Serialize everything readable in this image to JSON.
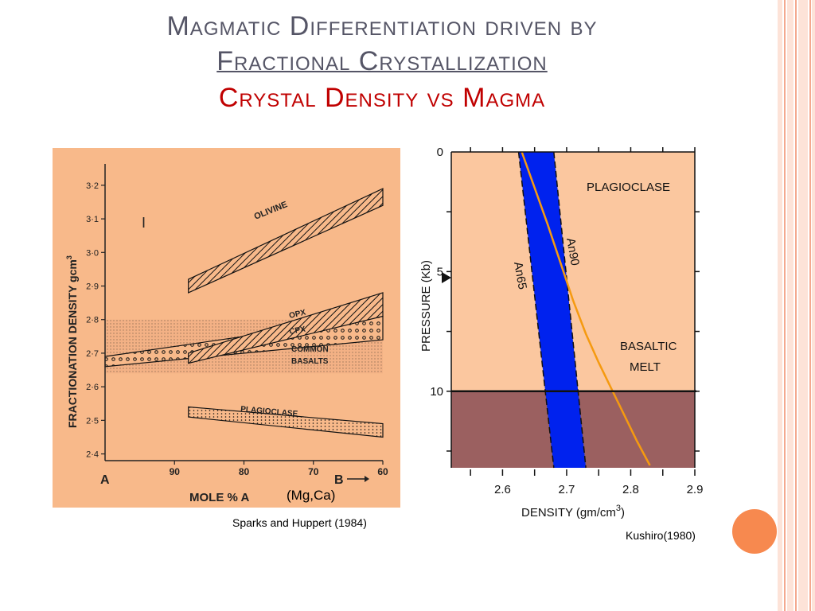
{
  "slide": {
    "title_line1": "Magmatic Differentiation driven by",
    "title_line2": "Fractional Crystallization",
    "title_line3": "Crystal Density vs Magma",
    "colors": {
      "title": "#555566",
      "subtitle_red": "#c00000",
      "accent_circle": "#f7894f"
    }
  },
  "left_figure": {
    "caption": "Sparks and Huppert (1984)",
    "annotation_mgca": "(Mg,Ca)",
    "region_label": "I",
    "xaxis_left_label": "A",
    "xaxis_right_label": "B",
    "xaxis_title": "MOLE % A",
    "ylabel": "FRACTIONATION DENSITY gcm",
    "ylabel_sup": "3",
    "band_labels": [
      "OLIVINE",
      "OPX",
      "CPX",
      "COMMON",
      "BASALTS",
      "PLAGIOCLASE"
    ]
  },
  "right_figure": {
    "caption": "Kushiro(1980)",
    "ylabel": "PRESSURE (Kb)",
    "xlabel": "DENSITY (gm/cm",
    "xlabel_sup": "3",
    "xlabel_close": ")",
    "label_plagioclase": "PLAGIOCLASE",
    "label_basaltic": "BASALTIC",
    "label_melt": "MELT",
    "label_an90": "An90",
    "label_an65": "An65"
  },
  "chart_data": [
    {
      "type": "area",
      "title": "",
      "xlabel": "MOLE % A",
      "ylabel": "FRACTIONATION DENSITY gcm3",
      "x_ticks": [
        90,
        80,
        70,
        60
      ],
      "y_ticks": [
        2.4,
        2.5,
        2.6,
        2.7,
        2.8,
        2.9,
        3.0,
        3.1,
        3.2
      ],
      "y_tick_labels": [
        "2·4",
        "2·5",
        "2·6",
        "2·7",
        "2·8",
        "2·9",
        "3·0",
        "3·1",
        "3·2"
      ],
      "xlim": [
        100,
        60
      ],
      "ylim": [
        2.38,
        3.24
      ],
      "series": [
        {
          "name": "OLIVINE",
          "x": [
            88,
            60
          ],
          "lower": [
            2.88,
            3.14
          ],
          "upper": [
            2.92,
            3.19
          ]
        },
        {
          "name": "OPX",
          "x": [
            88,
            60
          ],
          "lower": [
            2.67,
            2.81
          ],
          "upper": [
            2.7,
            2.88
          ]
        },
        {
          "name": "CPX",
          "x": [
            100,
            60
          ],
          "lower": [
            2.66,
            2.74
          ],
          "upper": [
            2.69,
            2.81
          ]
        },
        {
          "name": "COMMON BASALTS",
          "x": [
            100,
            60
          ],
          "lower": [
            2.64,
            2.64
          ],
          "upper": [
            2.8,
            2.8
          ]
        },
        {
          "name": "PLAGIOCLASE",
          "x": [
            88,
            60
          ],
          "lower": [
            2.51,
            2.45
          ],
          "upper": [
            2.54,
            2.49
          ]
        }
      ]
    },
    {
      "type": "line",
      "title": "",
      "xlabel": "DENSITY (gm/cm3)",
      "ylabel": "PRESSURE (Kb)",
      "x_ticks": [
        2.6,
        2.7,
        2.8,
        2.9
      ],
      "y_ticks": [
        0,
        5,
        10
      ],
      "xlim": [
        2.52,
        2.9
      ],
      "ylim": [
        13.2,
        0
      ],
      "boundary_pressure": 10,
      "series": [
        {
          "name": "An90",
          "x": [
            2.68,
            2.73
          ],
          "y": [
            0,
            13.2
          ]
        },
        {
          "name": "An65",
          "x": [
            2.625,
            2.68
          ],
          "y": [
            0,
            13.2
          ]
        },
        {
          "name": "BASALTIC MELT",
          "x": [
            2.63,
            2.65,
            2.67,
            2.69,
            2.71,
            2.73,
            2.75,
            2.77,
            2.79,
            2.81,
            2.83
          ],
          "y": [
            0,
            1.5,
            3,
            4.6,
            6.2,
            7.6,
            8.8,
            9.9,
            11,
            12.1,
            13.1
          ]
        }
      ]
    }
  ]
}
